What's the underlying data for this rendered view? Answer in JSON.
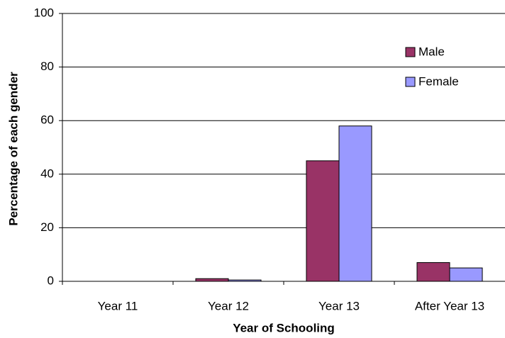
{
  "chart_data": {
    "type": "bar",
    "x_label": "Year of Schooling",
    "y_label": "Percentage of each gender",
    "categories": [
      "Year 11",
      "Year 12",
      "Year 13",
      "After Year 13"
    ],
    "series": [
      {
        "name": "Male",
        "color": "#993366",
        "values": [
          0,
          1,
          45,
          7
        ]
      },
      {
        "name": "Female",
        "color": "#9999ff",
        "values": [
          0,
          0.5,
          58,
          5
        ]
      }
    ],
    "ylim": [
      0,
      100
    ],
    "yticks": [
      0,
      20,
      40,
      60,
      80,
      100
    ],
    "grid": true,
    "legend": "upper right"
  }
}
